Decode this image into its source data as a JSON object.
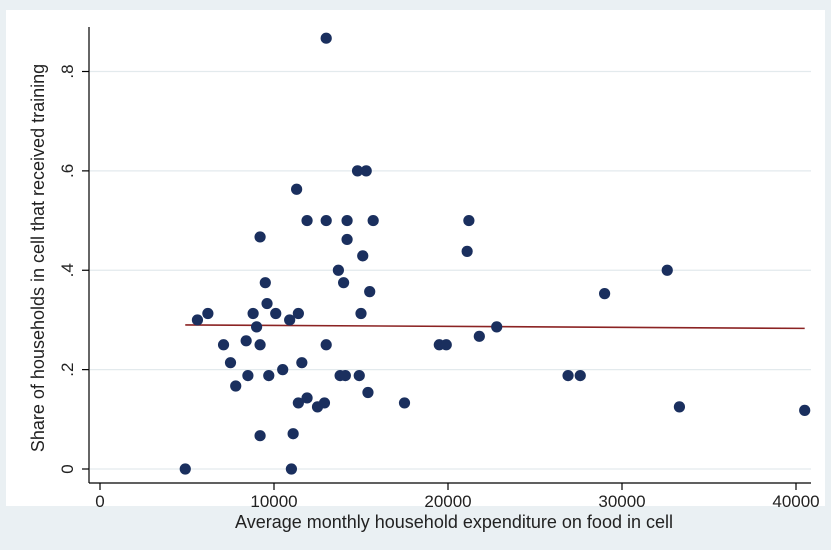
{
  "chart_data": {
    "type": "scatter",
    "title": "",
    "xlabel": "Average monthly household expenditure on food in cell",
    "ylabel": "Share of households in cell that received training",
    "xlim": [
      0,
      41000
    ],
    "ylim": [
      -0.02,
      0.89
    ],
    "x_ticks": [
      0,
      10000,
      20000,
      30000,
      40000
    ],
    "x_tick_labels": [
      "0",
      "10000",
      "20000",
      "30000",
      "40000"
    ],
    "y_ticks": [
      0,
      0.2,
      0.4,
      0.6,
      0.8
    ],
    "y_tick_labels": [
      "0",
      ".2",
      ".4",
      ".6",
      ".8"
    ],
    "grid": "horizontal",
    "colors": {
      "background": "#eaf0f3",
      "plot_area": "#ffffff",
      "points": "#1a2f5e",
      "fit_line": "#8b2323",
      "grid": "#e3eaed"
    },
    "points": [
      {
        "x": 4900,
        "y": 0.0
      },
      {
        "x": 5600,
        "y": 0.3
      },
      {
        "x": 6200,
        "y": 0.313
      },
      {
        "x": 7100,
        "y": 0.25
      },
      {
        "x": 7500,
        "y": 0.214
      },
      {
        "x": 7800,
        "y": 0.167
      },
      {
        "x": 8400,
        "y": 0.258
      },
      {
        "x": 8500,
        "y": 0.188
      },
      {
        "x": 8800,
        "y": 0.313
      },
      {
        "x": 9000,
        "y": 0.286
      },
      {
        "x": 9200,
        "y": 0.467
      },
      {
        "x": 9200,
        "y": 0.25
      },
      {
        "x": 9200,
        "y": 0.067
      },
      {
        "x": 9500,
        "y": 0.375
      },
      {
        "x": 9600,
        "y": 0.333
      },
      {
        "x": 9700,
        "y": 0.188
      },
      {
        "x": 10100,
        "y": 0.313
      },
      {
        "x": 10500,
        "y": 0.2
      },
      {
        "x": 10900,
        "y": 0.3
      },
      {
        "x": 11000,
        "y": 0.0
      },
      {
        "x": 11100,
        "y": 0.071
      },
      {
        "x": 11300,
        "y": 0.563
      },
      {
        "x": 11400,
        "y": 0.313
      },
      {
        "x": 11400,
        "y": 0.133
      },
      {
        "x": 11600,
        "y": 0.214
      },
      {
        "x": 11900,
        "y": 0.143
      },
      {
        "x": 11900,
        "y": 0.5
      },
      {
        "x": 12500,
        "y": 0.125
      },
      {
        "x": 12900,
        "y": 0.133
      },
      {
        "x": 13000,
        "y": 0.867
      },
      {
        "x": 13000,
        "y": 0.5
      },
      {
        "x": 13000,
        "y": 0.25
      },
      {
        "x": 13700,
        "y": 0.4
      },
      {
        "x": 13800,
        "y": 0.188
      },
      {
        "x": 14000,
        "y": 0.375
      },
      {
        "x": 14100,
        "y": 0.188
      },
      {
        "x": 14200,
        "y": 0.5
      },
      {
        "x": 14200,
        "y": 0.462
      },
      {
        "x": 14800,
        "y": 0.6
      },
      {
        "x": 14900,
        "y": 0.188
      },
      {
        "x": 15000,
        "y": 0.313
      },
      {
        "x": 15100,
        "y": 0.429
      },
      {
        "x": 15300,
        "y": 0.6
      },
      {
        "x": 15400,
        "y": 0.154
      },
      {
        "x": 15500,
        "y": 0.357
      },
      {
        "x": 15700,
        "y": 0.5
      },
      {
        "x": 17500,
        "y": 0.133
      },
      {
        "x": 19500,
        "y": 0.25
      },
      {
        "x": 19900,
        "y": 0.25
      },
      {
        "x": 21100,
        "y": 0.438
      },
      {
        "x": 21200,
        "y": 0.5
      },
      {
        "x": 21800,
        "y": 0.267
      },
      {
        "x": 22800,
        "y": 0.286
      },
      {
        "x": 26900,
        "y": 0.188
      },
      {
        "x": 27600,
        "y": 0.188
      },
      {
        "x": 29000,
        "y": 0.353
      },
      {
        "x": 32600,
        "y": 0.4
      },
      {
        "x": 33300,
        "y": 0.125
      },
      {
        "x": 40500,
        "y": 0.118
      }
    ],
    "fit_line": [
      {
        "x": 4900,
        "y": 0.29
      },
      {
        "x": 40500,
        "y": 0.283
      }
    ]
  }
}
